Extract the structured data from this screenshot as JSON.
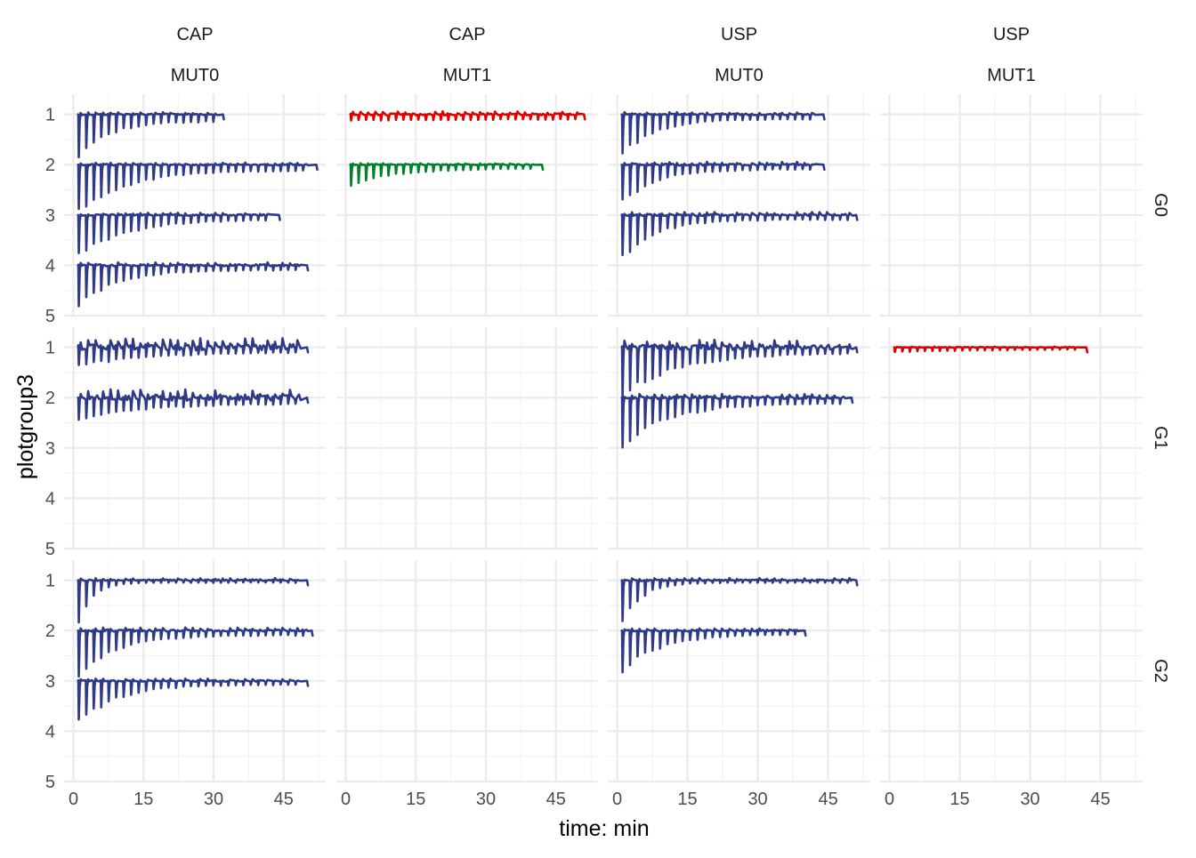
{
  "chart_data": {
    "type": "line",
    "facets": {
      "columns": [
        {
          "strip_top": "CAP",
          "strip_bottom": "MUT0"
        },
        {
          "strip_top": "CAP",
          "strip_bottom": "MUT1"
        },
        {
          "strip_top": "USP",
          "strip_bottom": "MUT0"
        },
        {
          "strip_top": "USP",
          "strip_bottom": "MUT1"
        }
      ],
      "rows": [
        "G0",
        "G1",
        "G2"
      ]
    },
    "xlabel": "time: min",
    "ylabel": "plotgroup3",
    "x_ticks": [
      0,
      15,
      30,
      45
    ],
    "y_ticks": [
      1,
      2,
      3,
      4,
      5
    ],
    "xlim": [
      -2,
      54
    ],
    "ylim": [
      0.6,
      5.0
    ],
    "y_reversed": true,
    "grid": true,
    "legend": "none",
    "colors": {
      "blue": "#2e3a87",
      "red": "#e00000",
      "green": "#00802b"
    },
    "series": [
      {
        "row": 0,
        "col": 0,
        "baseline": 1,
        "color": "blue",
        "x_start": 1,
        "x_end": 32,
        "interval": 1.6,
        "depth_start": 0.95,
        "depth_end": 0.15,
        "decay": 6,
        "noise": 0.015
      },
      {
        "row": 0,
        "col": 0,
        "baseline": 2,
        "color": "blue",
        "x_start": 1,
        "x_end": 52,
        "interval": 1.6,
        "depth_start": 1.0,
        "depth_end": 0.12,
        "decay": 10,
        "noise": 0.015
      },
      {
        "row": 0,
        "col": 0,
        "baseline": 3,
        "color": "blue",
        "x_start": 1,
        "x_end": 44,
        "interval": 1.6,
        "depth_start": 0.85,
        "depth_end": 0.1,
        "decay": 10,
        "noise": 0.015
      },
      {
        "row": 0,
        "col": 0,
        "baseline": 4,
        "color": "blue",
        "x_start": 1,
        "x_end": 50,
        "interval": 1.6,
        "depth_start": 0.85,
        "depth_end": 0.1,
        "decay": 8,
        "noise": 0.02
      },
      {
        "row": 0,
        "col": 1,
        "baseline": 1,
        "color": "red",
        "x_start": 1,
        "x_end": 51,
        "interval": 1.6,
        "depth_start": 0.13,
        "depth_end": 0.1,
        "decay": 30,
        "noise": 0.02
      },
      {
        "row": 0,
        "col": 1,
        "baseline": 2,
        "color": "green",
        "x_start": 1,
        "x_end": 42,
        "interval": 1.6,
        "depth_start": 0.42,
        "depth_end": 0.08,
        "decay": 10,
        "noise": 0.01
      },
      {
        "row": 0,
        "col": 2,
        "baseline": 1,
        "color": "blue",
        "x_start": 1,
        "x_end": 44,
        "interval": 1.6,
        "depth_start": 0.85,
        "depth_end": 0.1,
        "decay": 7,
        "noise": 0.015
      },
      {
        "row": 0,
        "col": 2,
        "baseline": 2,
        "color": "blue",
        "x_start": 1,
        "x_end": 44,
        "interval": 1.6,
        "depth_start": 0.8,
        "depth_end": 0.1,
        "decay": 7,
        "noise": 0.02
      },
      {
        "row": 0,
        "col": 2,
        "baseline": 3,
        "color": "blue",
        "x_start": 1,
        "x_end": 51,
        "interval": 1.6,
        "depth_start": 0.9,
        "depth_end": 0.1,
        "decay": 7,
        "noise": 0.02
      },
      {
        "row": 1,
        "col": 0,
        "baseline": 1,
        "color": "blue",
        "x_start": 1,
        "x_end": 50,
        "interval": 1.6,
        "depth_start": 0.4,
        "depth_end": 0.1,
        "decay": 15,
        "noise": 0.06
      },
      {
        "row": 1,
        "col": 0,
        "baseline": 2,
        "color": "blue",
        "x_start": 1,
        "x_end": 50,
        "interval": 1.6,
        "depth_start": 0.45,
        "depth_end": 0.12,
        "decay": 15,
        "noise": 0.06
      },
      {
        "row": 1,
        "col": 2,
        "baseline": 1,
        "color": "blue",
        "x_start": 1,
        "x_end": 51,
        "interval": 1.6,
        "depth_start": 1.0,
        "depth_end": 0.12,
        "decay": 12,
        "noise": 0.05
      },
      {
        "row": 1,
        "col": 2,
        "baseline": 2,
        "color": "blue",
        "x_start": 1,
        "x_end": 50,
        "interval": 1.6,
        "depth_start": 1.0,
        "depth_end": 0.12,
        "decay": 10,
        "noise": 0.025
      },
      {
        "row": 1,
        "col": 3,
        "baseline": 1,
        "color": "red",
        "x_start": 1,
        "x_end": 42,
        "interval": 1.6,
        "depth_start": 0.1,
        "depth_end": 0.04,
        "decay": 20,
        "noise": 0.005
      },
      {
        "row": 2,
        "col": 0,
        "baseline": 1,
        "color": "blue",
        "x_start": 1,
        "x_end": 50,
        "interval": 1.6,
        "depth_start": 0.85,
        "depth_end": 0.05,
        "decay": 3,
        "noise": 0.015
      },
      {
        "row": 2,
        "col": 0,
        "baseline": 2,
        "color": "blue",
        "x_start": 1,
        "x_end": 51,
        "interval": 1.6,
        "depth_start": 0.95,
        "depth_end": 0.1,
        "decay": 8,
        "noise": 0.02
      },
      {
        "row": 2,
        "col": 0,
        "baseline": 3,
        "color": "blue",
        "x_start": 1,
        "x_end": 50,
        "interval": 1.6,
        "depth_start": 0.9,
        "depth_end": 0.08,
        "decay": 8,
        "noise": 0.015
      },
      {
        "row": 2,
        "col": 2,
        "baseline": 1,
        "color": "blue",
        "x_start": 1,
        "x_end": 51,
        "interval": 1.6,
        "depth_start": 0.9,
        "depth_end": 0.05,
        "decay": 4,
        "noise": 0.015
      },
      {
        "row": 2,
        "col": 2,
        "baseline": 2,
        "color": "blue",
        "x_start": 1,
        "x_end": 40,
        "interval": 1.6,
        "depth_start": 0.85,
        "depth_end": 0.08,
        "decay": 8,
        "noise": 0.015
      }
    ]
  }
}
